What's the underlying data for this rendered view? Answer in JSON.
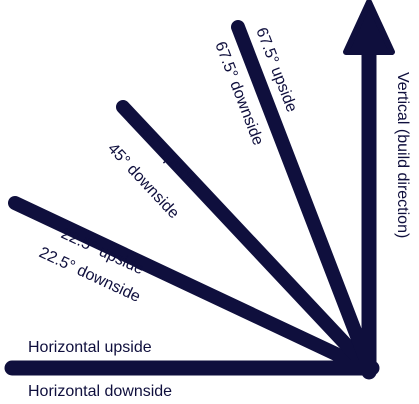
{
  "colors": {
    "line": "#0f0f3d",
    "text": "#0f0f3d",
    "background": "#ffffff"
  },
  "labels": {
    "horizontal_upside": "Horizontal upside",
    "horizontal_downside": "Horizontal downside",
    "deg22_upside": "22.5° upside",
    "deg22_downside": "22.5° downside",
    "deg45_upside": "45° upside",
    "deg45_downside": "45° downside",
    "deg67_upside": "67.5° upside",
    "deg67_downside": "67.5° downside",
    "vertical": "Vertical (build direction)"
  }
}
